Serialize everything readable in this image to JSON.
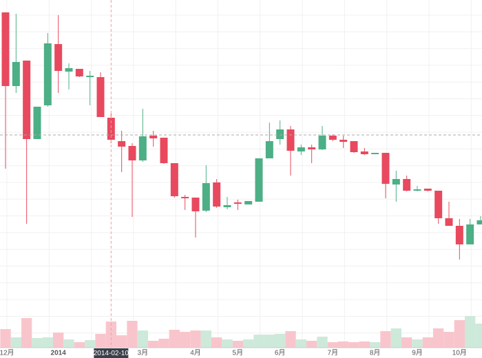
{
  "chart_data": {
    "type": "candlestick",
    "categories": [
      "12月",
      null,
      null,
      null,
      null,
      "2014",
      null,
      null,
      null,
      null,
      "2014-02-10",
      null,
      null,
      "3月",
      null,
      null,
      null,
      null,
      "4月",
      null,
      null,
      null,
      "5月",
      null,
      null,
      null,
      "6月",
      null,
      null,
      null,
      null,
      "7月",
      null,
      null,
      null,
      "8月",
      null,
      null,
      null,
      "9月",
      null,
      null,
      null,
      "10月",
      null,
      null
    ],
    "open": [
      375,
      410,
      298,
      345,
      437,
      397,
      401,
      389,
      390,
      330,
      297,
      287,
      267,
      302,
      299,
      263,
      215,
      212,
      193,
      234,
      200,
      202,
      204,
      208,
      270,
      295,
      312,
      281,
      286,
      283,
      303,
      297,
      294,
      279,
      276,
      278,
      233,
      240,
      223,
      225,
      223,
      183,
      172,
      145,
      174,
      180
    ],
    "high": [
      482,
      480,
      412,
      345,
      452,
      478,
      408,
      400,
      397,
      395,
      335,
      310,
      292,
      342,
      310,
      300,
      263,
      217,
      213,
      260,
      240,
      214,
      210,
      208,
      270,
      322,
      325,
      317,
      290,
      290,
      317,
      305,
      303,
      295,
      285,
      278,
      278,
      252,
      245,
      230,
      226,
      223,
      207,
      182,
      182,
      186
    ],
    "low": [
      255,
      365,
      175,
      298,
      345,
      365,
      370,
      388,
      347,
      330,
      292,
      250,
      185,
      265,
      287,
      262,
      213,
      195,
      155,
      192,
      198,
      196,
      195,
      203,
      207,
      270,
      290,
      245,
      275,
      263,
      282,
      295,
      285,
      278,
      275,
      276,
      212,
      207,
      222,
      222,
      222,
      175,
      172,
      123,
      145,
      174
    ],
    "close": [
      482,
      375,
      412,
      298,
      347,
      436,
      396,
      400,
      388,
      388,
      329,
      295,
      288,
      267,
      303,
      300,
      263,
      214,
      213,
      194,
      235,
      199,
      206,
      203,
      207,
      270,
      298,
      312,
      280,
      286,
      283,
      303,
      297,
      295,
      280,
      276,
      278,
      232,
      240,
      223,
      226,
      223,
      183,
      172,
      145,
      174
    ],
    "volume": [
      27,
      15,
      43,
      14,
      15,
      22,
      12,
      8,
      11,
      20,
      38,
      18,
      39,
      25,
      10,
      13,
      26,
      23,
      25,
      25,
      15,
      12,
      10,
      12,
      19,
      19,
      20,
      24,
      12,
      10,
      16,
      8,
      9,
      8,
      9,
      8,
      24,
      28,
      15,
      12,
      15,
      28,
      23,
      40,
      46,
      35
    ],
    "ylim": [
      60,
      500
    ],
    "volume_ylim": [
      0,
      60
    ],
    "up_color": "#e8495e",
    "down_color": "#4caf85",
    "volume_up_color": "#f9c5cc",
    "volume_down_color": "#cde9da",
    "crosshair": {
      "x": "2014-02-10",
      "y": 304
    }
  }
}
